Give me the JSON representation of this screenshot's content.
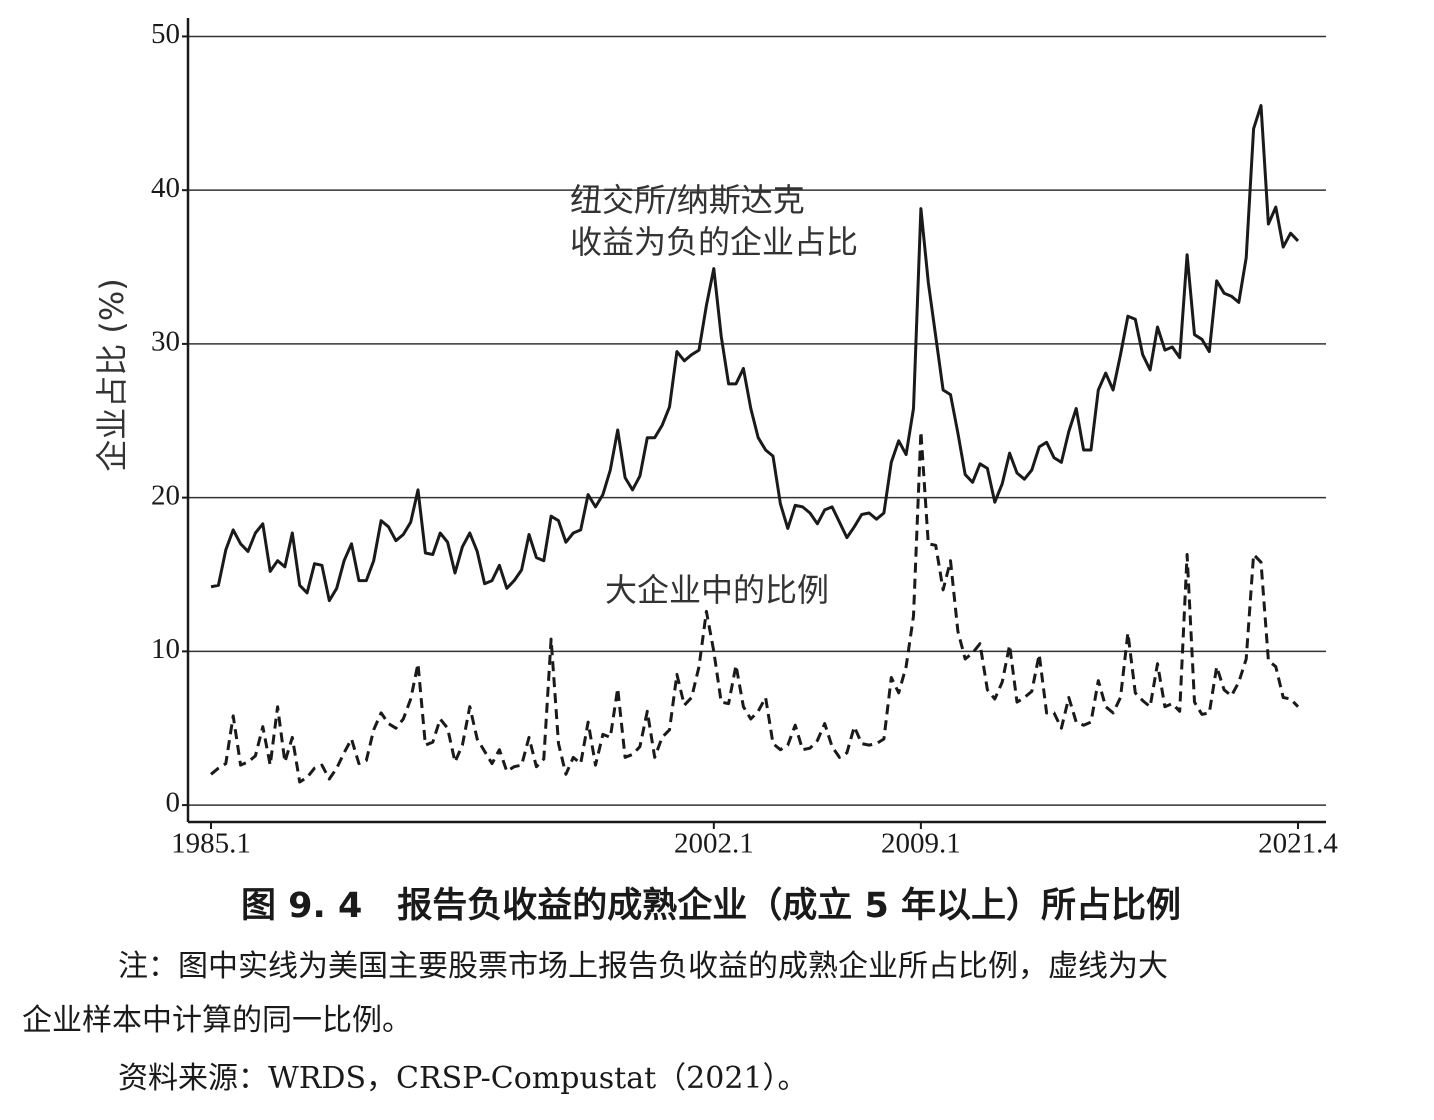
{
  "chart_data": {
    "type": "line",
    "ylabel": "企业占比 (%)",
    "annotations": [
      [
        "纽交所/纳斯达克",
        "收益为负的企业占比"
      ],
      [
        "大企业中的比例"
      ]
    ],
    "categories": [
      "1985.1",
      null,
      null,
      null,
      null,
      null,
      null,
      null,
      null,
      null,
      null,
      null,
      null,
      null,
      null,
      null,
      null,
      null,
      null,
      null,
      null,
      null,
      null,
      null,
      null,
      null,
      null,
      null,
      null,
      null,
      null,
      null,
      null,
      null,
      null,
      null,
      null,
      null,
      null,
      null,
      null,
      null,
      null,
      null,
      null,
      null,
      null,
      null,
      null,
      null,
      null,
      null,
      null,
      null,
      null,
      null,
      null,
      null,
      null,
      null,
      null,
      null,
      null,
      null,
      null,
      null,
      null,
      null,
      "2002.1",
      null,
      null,
      null,
      null,
      null,
      null,
      null,
      null,
      null,
      null,
      null,
      null,
      null,
      null,
      null,
      null,
      null,
      null,
      null,
      null,
      null,
      null,
      null,
      null,
      null,
      null,
      null,
      "2009.1",
      null,
      null,
      null,
      null,
      null,
      null,
      null,
      null,
      null,
      null,
      null,
      null,
      null,
      null,
      null,
      null,
      null,
      null,
      null,
      null,
      null,
      null,
      null,
      null,
      null,
      null,
      null,
      null,
      null,
      null,
      null,
      null,
      null,
      null,
      null,
      null,
      null,
      null,
      null,
      null,
      null,
      null,
      null,
      null,
      null,
      null,
      null,
      null,
      null,
      null,
      "2021.4"
    ],
    "series": [
      {
        "style": "solid",
        "color": "#1a1a1a",
        "values": [
          14.2,
          14.3,
          16.6,
          17.9,
          17.0,
          16.5,
          17.7,
          18.3,
          15.2,
          15.9,
          15.5,
          17.7,
          14.3,
          13.8,
          15.7,
          15.6,
          13.3,
          14.1,
          15.9,
          17.0,
          14.6,
          14.6,
          15.9,
          18.5,
          18.1,
          17.2,
          17.6,
          18.4,
          20.5,
          16.4,
          16.3,
          17.7,
          17.1,
          15.1,
          16.8,
          17.7,
          16.5,
          14.4,
          14.6,
          15.6,
          14.1,
          14.6,
          15.3,
          17.6,
          16.1,
          15.9,
          18.8,
          18.5,
          17.1,
          17.7,
          17.9,
          20.2,
          19.4,
          20.2,
          21.8,
          24.4,
          21.3,
          20.5,
          21.4,
          23.9,
          23.9,
          24.7,
          25.9,
          29.5,
          28.9,
          29.3,
          29.6,
          32.5,
          34.9,
          30.5,
          27.4,
          27.4,
          28.4,
          25.8,
          23.9,
          23.1,
          22.7,
          19.6,
          18.0,
          19.5,
          19.4,
          19.0,
          18.3,
          19.2,
          19.4,
          18.4,
          17.4,
          18.1,
          18.9,
          19.0,
          18.6,
          19.0,
          22.3,
          23.7,
          22.8,
          25.8,
          38.8,
          34.0,
          30.5,
          27.0,
          26.7,
          24.2,
          21.5,
          21.0,
          22.2,
          21.9,
          19.7,
          20.9,
          22.9,
          21.6,
          21.2,
          21.8,
          23.3,
          23.6,
          22.6,
          22.3,
          24.3,
          25.8,
          23.1,
          23.1,
          27.0,
          28.1,
          27.0,
          29.3,
          31.8,
          31.6,
          29.3,
          28.3,
          31.1,
          29.6,
          29.8,
          29.1,
          35.8,
          30.6,
          30.3,
          29.5,
          34.1,
          33.3,
          33.1,
          32.7,
          35.6,
          44.0,
          45.5,
          37.8,
          38.9,
          36.3,
          37.2,
          36.7
        ]
      },
      {
        "style": "dashed",
        "color": "#1a1a1a",
        "values": [
          2.0,
          2.4,
          2.7,
          5.8,
          2.6,
          2.8,
          3.2,
          5.1,
          2.6,
          6.4,
          2.8,
          4.4,
          1.5,
          1.8,
          2.4,
          2.6,
          1.7,
          2.4,
          3.4,
          4.3,
          2.7,
          2.9,
          4.9,
          6.0,
          5.3,
          5.0,
          5.6,
          6.9,
          9.2,
          3.9,
          4.1,
          5.6,
          5.0,
          2.8,
          3.9,
          6.4,
          4.3,
          3.5,
          2.7,
          3.6,
          2.2,
          2.5,
          2.6,
          4.4,
          2.5,
          3.0,
          10.8,
          4.0,
          2.0,
          3.1,
          2.7,
          5.4,
          2.6,
          4.6,
          4.4,
          7.6,
          3.1,
          3.3,
          3.8,
          6.1,
          3.1,
          4.4,
          4.9,
          8.5,
          6.5,
          7.0,
          9.0,
          12.6,
          10.0,
          6.7,
          6.6,
          9.1,
          6.4,
          5.6,
          6.1,
          7.0,
          4.0,
          3.6,
          3.9,
          5.2,
          3.6,
          3.7,
          4.2,
          5.3,
          3.8,
          3.1,
          3.4,
          5.1,
          4.0,
          3.9,
          4.0,
          4.3,
          8.3,
          7.3,
          9.0,
          12.3,
          24.3,
          17.0,
          16.9,
          14.0,
          15.9,
          11.3,
          9.5,
          9.9,
          10.5,
          7.5,
          6.9,
          8.0,
          10.4,
          6.7,
          7.0,
          7.4,
          9.8,
          6.0,
          6.0,
          5.0,
          7.0,
          5.4,
          5.2,
          5.4,
          8.1,
          6.4,
          6.0,
          7.0,
          11.2,
          7.3,
          6.8,
          6.4,
          9.2,
          6.4,
          6.6,
          6.1,
          16.3,
          6.7,
          5.9,
          6.0,
          9.0,
          7.5,
          7.1,
          8.0,
          9.5,
          16.3,
          15.8,
          9.4,
          9.0,
          7.0,
          6.9,
          6.4
        ]
      }
    ],
    "ylim": [
      -1.1,
      51.2
    ],
    "yticks": [
      0,
      10,
      20,
      30,
      40,
      50
    ],
    "grid": true,
    "caption": "图 9. 4　报告负收益的成熟企业（成立 5 年以上）所占比例",
    "note": [
      "注：图中实线为美国主要股票市场上报告负收益的成熟企业所占比例，虚线为大",
      "企业样本中计算的同一比例。"
    ],
    "source": "资料来源：WRDS，CRSP-Compustat（2021）。"
  }
}
